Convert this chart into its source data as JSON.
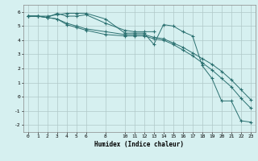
{
  "xlabel": "Humidex (Indice chaleur)",
  "bg_color": "#d6f0f0",
  "grid_color": "#b0c8c8",
  "line_color": "#2a7070",
  "xlim": [
    -0.5,
    23.5
  ],
  "ylim": [
    -2.5,
    6.5
  ],
  "xticks": [
    0,
    1,
    2,
    3,
    4,
    5,
    6,
    8,
    10,
    11,
    12,
    13,
    14,
    15,
    16,
    17,
    18,
    19,
    20,
    21,
    22,
    23
  ],
  "yticks": [
    -2,
    -1,
    0,
    1,
    2,
    3,
    4,
    5,
    6
  ],
  "line1_x": [
    0,
    1,
    2,
    3,
    4,
    5,
    6,
    8,
    10,
    11,
    12,
    13,
    14,
    15,
    16,
    17,
    18,
    19,
    20,
    21,
    22,
    23
  ],
  "line1_y": [
    5.7,
    5.7,
    5.7,
    5.8,
    5.9,
    5.9,
    5.9,
    5.5,
    4.5,
    4.5,
    4.5,
    3.7,
    5.1,
    5.0,
    4.6,
    4.3,
    2.2,
    1.3,
    -0.3,
    -0.3,
    -1.7,
    -1.8
  ],
  "line2_x": [
    0,
    1,
    2,
    3,
    4,
    5,
    6,
    8,
    10,
    11,
    12,
    13,
    14,
    15,
    16,
    17,
    18,
    19,
    20,
    21,
    22,
    23
  ],
  "line2_y": [
    5.7,
    5.7,
    5.6,
    5.5,
    5.2,
    5.0,
    4.8,
    4.6,
    4.4,
    4.4,
    4.4,
    4.2,
    4.1,
    3.8,
    3.5,
    3.1,
    2.7,
    2.3,
    1.8,
    1.2,
    0.5,
    -0.2
  ],
  "line3_x": [
    0,
    1,
    2,
    3,
    4,
    5,
    6,
    8,
    10,
    11,
    12,
    13,
    14,
    15,
    16,
    17,
    18,
    19,
    20,
    21,
    22,
    23
  ],
  "line3_y": [
    5.7,
    5.7,
    5.6,
    5.5,
    5.1,
    4.9,
    4.7,
    4.4,
    4.3,
    4.3,
    4.3,
    4.1,
    4.0,
    3.7,
    3.3,
    2.9,
    2.4,
    1.9,
    1.3,
    0.7,
    -0.1,
    -0.8
  ],
  "line4_x": [
    0,
    1,
    2,
    3,
    4,
    5,
    6,
    8,
    10,
    11,
    12,
    13
  ],
  "line4_y": [
    5.7,
    5.7,
    5.6,
    5.9,
    5.7,
    5.7,
    5.8,
    5.2,
    4.7,
    4.6,
    4.6,
    4.6
  ]
}
